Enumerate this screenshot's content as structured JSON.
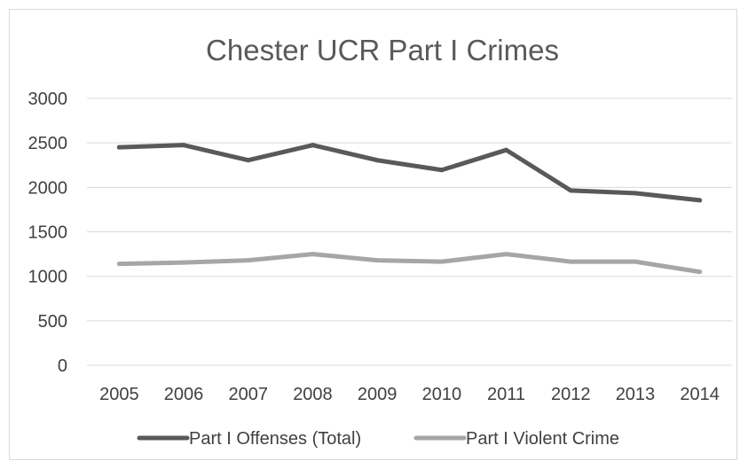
{
  "chart_data": {
    "type": "line",
    "title": "Chester UCR Part I Crimes",
    "xlabel": "",
    "ylabel": "",
    "categories": [
      "2005",
      "2006",
      "2007",
      "2008",
      "2009",
      "2010",
      "2011",
      "2012",
      "2013",
      "2014"
    ],
    "ylim": [
      0,
      3000
    ],
    "yticks": [
      "0",
      "500",
      "1000",
      "1500",
      "2000",
      "2500",
      "3000"
    ],
    "grid": true,
    "legend_position": "bottom",
    "series": [
      {
        "name": "Part I Offenses (Total)",
        "color": "#595959",
        "values": [
          2450,
          2475,
          2305,
          2475,
          2305,
          2195,
          2420,
          1965,
          1935,
          1855
        ]
      },
      {
        "name": "Part I Violent Crime",
        "color": "#a6a6a6",
        "values": [
          1140,
          1155,
          1180,
          1250,
          1180,
          1165,
          1250,
          1165,
          1165,
          1050
        ]
      }
    ]
  }
}
